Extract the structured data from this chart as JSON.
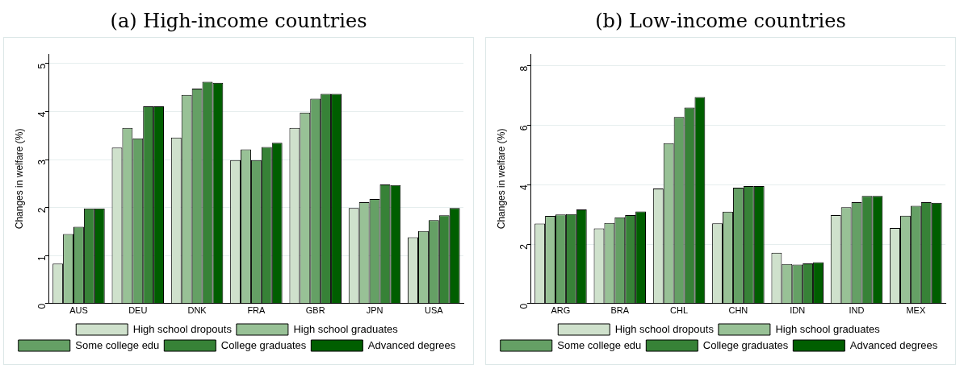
{
  "chart_data": [
    {
      "type": "bar",
      "title": "(a) High-income countries",
      "ylabel": "Changes in welfare (%)",
      "categories": [
        "AUS",
        "DEU",
        "DNK",
        "FRA",
        "GBR",
        "JPN",
        "USA"
      ],
      "ylim": [
        0,
        5.2
      ],
      "yticks": [
        0,
        1,
        2,
        3,
        4,
        5
      ],
      "grid": "y",
      "legend": "bottom",
      "series": [
        {
          "name": "High school dropouts",
          "color": "#cfe1cc",
          "values": [
            0.83,
            3.25,
            3.46,
            2.99,
            3.66,
            1.99,
            1.38
          ]
        },
        {
          "name": "High school graduates",
          "color": "#98c196",
          "values": [
            1.45,
            3.66,
            4.35,
            3.21,
            3.98,
            2.11,
            1.51
          ]
        },
        {
          "name": "Some college edu",
          "color": "#65a065",
          "values": [
            1.6,
            3.44,
            4.48,
            2.99,
            4.27,
            2.18,
            1.74
          ]
        },
        {
          "name": "College graduates",
          "color": "#378237",
          "values": [
            1.98,
            4.11,
            4.62,
            3.26,
            4.37,
            2.48,
            1.84
          ]
        },
        {
          "name": "Advanced degrees",
          "color": "#005e00",
          "values": [
            1.98,
            4.11,
            4.6,
            3.35,
            4.37,
            2.47,
            1.99
          ]
        }
      ]
    },
    {
      "type": "bar",
      "title": "(b) Low-income countries",
      "ylabel": "Changes in welfare (%)",
      "categories": [
        "ARG",
        "BRA",
        "CHL",
        "CHN",
        "IDN",
        "IND",
        "MEX"
      ],
      "ylim": [
        0,
        8.4
      ],
      "yticks": [
        0,
        2,
        4,
        6,
        8
      ],
      "grid": "y",
      "legend": "bottom",
      "series": [
        {
          "name": "High school dropouts",
          "color": "#cfe1cc",
          "values": [
            2.69,
            2.53,
            3.87,
            2.7,
            1.71,
            2.98,
            2.54
          ]
        },
        {
          "name": "High school graduates",
          "color": "#98c196",
          "values": [
            2.95,
            2.71,
            5.4,
            3.09,
            1.33,
            3.24,
            2.96
          ]
        },
        {
          "name": "Some college edu",
          "color": "#65a065",
          "values": [
            3.0,
            2.9,
            6.28,
            3.9,
            1.31,
            3.41,
            3.29
          ]
        },
        {
          "name": "College graduates",
          "color": "#378237",
          "values": [
            3.01,
            2.98,
            6.6,
            3.95,
            1.35,
            3.62,
            3.41
          ]
        },
        {
          "name": "Advanced degrees",
          "color": "#005e00",
          "values": [
            3.17,
            3.1,
            6.95,
            3.95,
            1.39,
            3.62,
            3.39
          ]
        }
      ]
    }
  ]
}
